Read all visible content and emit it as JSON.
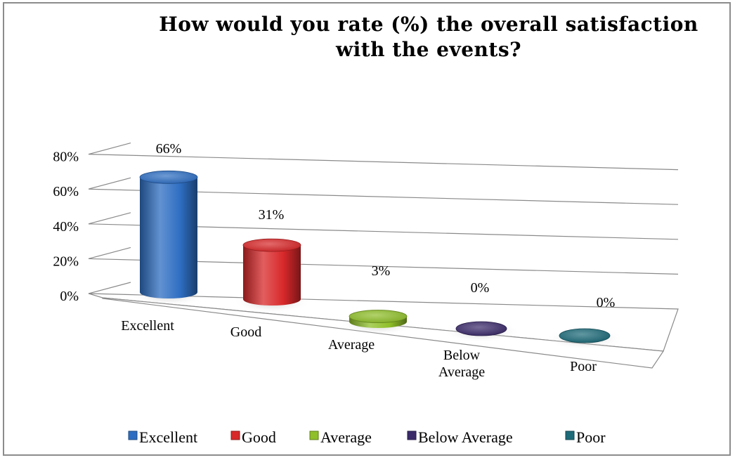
{
  "chart_data": {
    "type": "bar",
    "style": "3d-cylinder",
    "title_lines": [
      "How would you rate (%) the overall satisfaction",
      "with the events?"
    ],
    "categories": [
      {
        "lines": [
          "Excellent"
        ]
      },
      {
        "lines": [
          "Good"
        ]
      },
      {
        "lines": [
          "Average"
        ]
      },
      {
        "lines": [
          "Below",
          "Average"
        ]
      },
      {
        "lines": [
          "Poor"
        ]
      }
    ],
    "values": [
      66,
      31,
      3,
      0,
      0
    ],
    "data_labels": [
      "66%",
      "31%",
      "3%",
      "0%",
      "0%"
    ],
    "series_colors": [
      "#2e6ec2",
      "#d8282a",
      "#8fbf2a",
      "#3b2a6a",
      "#1d6b79"
    ],
    "y_tick_labels": [
      "0%",
      "20%",
      "40%",
      "60%",
      "80%"
    ],
    "ylim": [
      0,
      80
    ],
    "grid": true,
    "legend_position": "bottom",
    "legend": [
      "Excellent",
      "Good",
      "Average",
      "Below Average",
      "Poor"
    ]
  }
}
